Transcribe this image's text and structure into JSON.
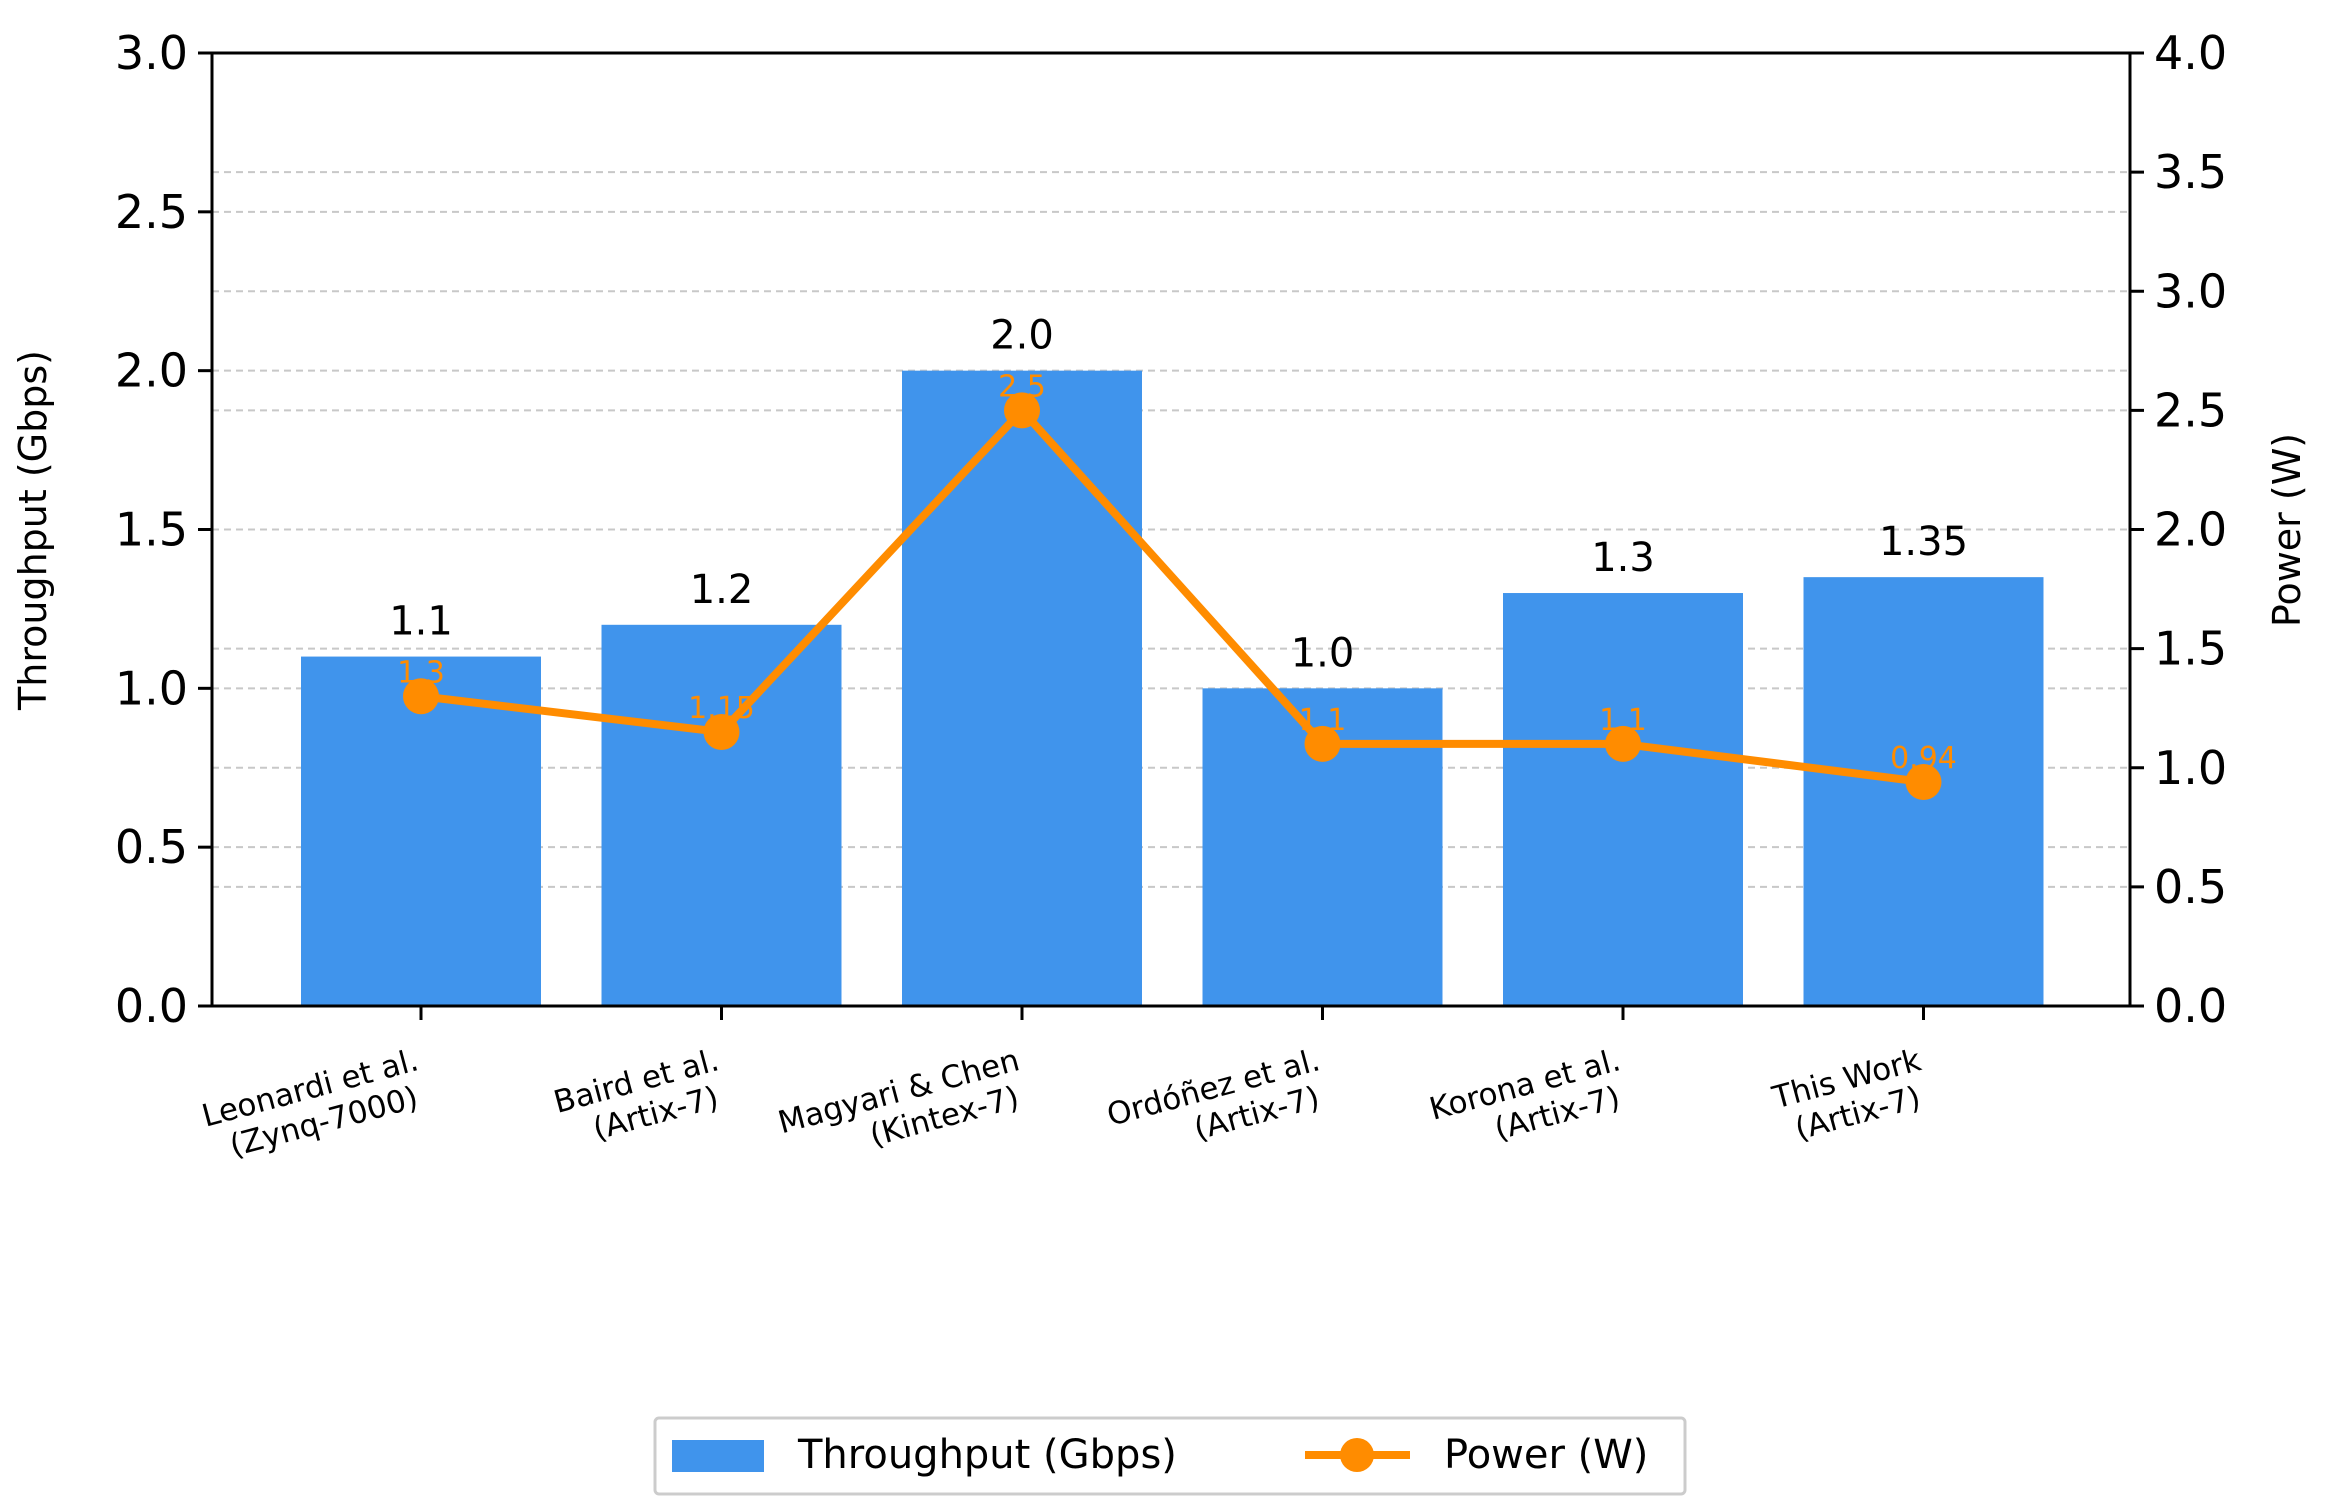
{
  "chart_data": {
    "type": "bar",
    "categories": [
      {
        "line1": "Leonardi et al.",
        "line2": "(Zynq-7000)"
      },
      {
        "line1": "Baird et al.",
        "line2": "(Artix-7)"
      },
      {
        "line1": "Magyari & Chen",
        "line2": "(Kintex-7)"
      },
      {
        "line1": "Ordóñez et al.",
        "line2": "(Artix-7)"
      },
      {
        "line1": "Korona et al.",
        "line2": "(Artix-7)"
      },
      {
        "line1": "This Work",
        "line2": "(Artix-7)"
      }
    ],
    "series": [
      {
        "name": "Throughput (Gbps)",
        "kind": "bar",
        "axis": "left",
        "color": "#4094ec",
        "values": [
          1.1,
          1.2,
          2.0,
          1.0,
          1.3,
          1.35
        ],
        "labels": [
          "1.1",
          "1.2",
          "2.0",
          "1.0",
          "1.3",
          "1.35"
        ]
      },
      {
        "name": "Power (W)",
        "kind": "line",
        "axis": "right",
        "color": "#ff8c00",
        "values": [
          1.3,
          1.15,
          2.5,
          1.1,
          1.1,
          0.94
        ],
        "labels": [
          "1.3",
          "1.15",
          "2.5",
          "1.1",
          "1.1",
          "0.94"
        ]
      }
    ],
    "ylabel": "Throughput (Gbps)",
    "ylabel_right": "Power (W)",
    "ylim": [
      0,
      3.0
    ],
    "ylim_right": [
      0,
      4.0
    ],
    "yticks": [
      "0.0",
      "0.5",
      "1.0",
      "1.5",
      "2.0",
      "2.5",
      "3.0"
    ],
    "yticks_right": [
      "0.0",
      "0.5",
      "1.0",
      "1.5",
      "2.0",
      "2.5",
      "3.0",
      "3.5",
      "4.0"
    ],
    "grid": "dashed horizontal",
    "legend": {
      "position": "bottom-center",
      "entries": [
        "Throughput (Gbps)",
        "Power (W)"
      ]
    }
  }
}
